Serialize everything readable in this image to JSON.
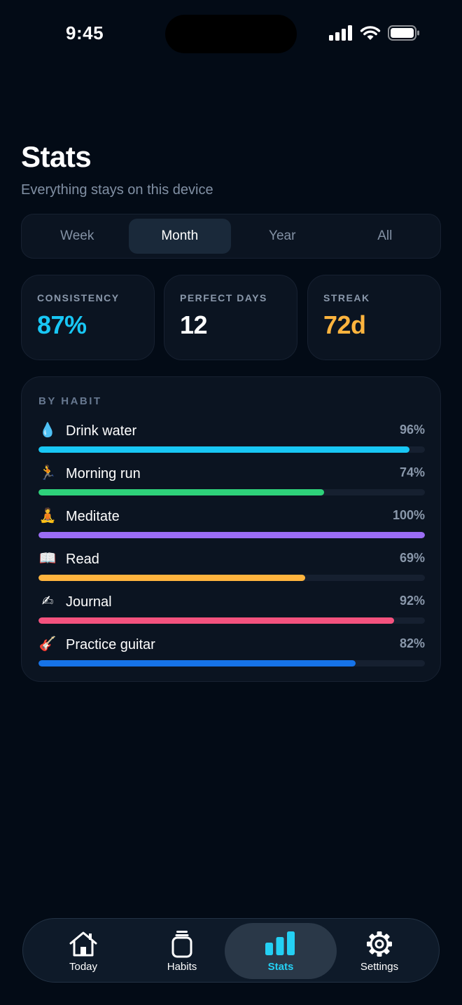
{
  "status_bar": {
    "time": "9:45"
  },
  "header": {
    "title": "Stats",
    "subtitle": "Everything stays on this device"
  },
  "period_tabs": [
    {
      "label": "Week",
      "active": false
    },
    {
      "label": "Month",
      "active": true
    },
    {
      "label": "Year",
      "active": false
    },
    {
      "label": "All",
      "active": false
    }
  ],
  "stat_cards": [
    {
      "label": "CONSISTENCY",
      "value": "87%",
      "color": "#18c7f5"
    },
    {
      "label": "PERFECT DAYS",
      "value": "12",
      "color": "#ffffff"
    },
    {
      "label": "STREAK",
      "value": "72d",
      "color": "#ffb43e"
    }
  ],
  "by_habit": {
    "label": "BY HABIT",
    "habits": [
      {
        "emoji": "💧",
        "name": "Drink water",
        "percent_label": "96%",
        "percent": 96,
        "color": "#18c7f5"
      },
      {
        "emoji": "🏃",
        "name": "Morning run",
        "percent_label": "74%",
        "percent": 74,
        "color": "#2ed17a"
      },
      {
        "emoji": "🧘",
        "name": "Meditate",
        "percent_label": "100%",
        "percent": 100,
        "color": "#9b6df5"
      },
      {
        "emoji": "📖",
        "name": "Read",
        "percent_label": "69%",
        "percent": 69,
        "color": "#ffb43e"
      },
      {
        "emoji": "✍",
        "name": "Journal",
        "percent_label": "92%",
        "percent": 92,
        "color": "#f4527e"
      },
      {
        "emoji": "🎸",
        "name": "Practice guitar",
        "percent_label": "82%",
        "percent": 82,
        "color": "#1673e8"
      }
    ]
  },
  "tab_bar": [
    {
      "label": "Today",
      "icon": "house-icon",
      "active": false
    },
    {
      "label": "Habits",
      "icon": "jar-icon",
      "active": false
    },
    {
      "label": "Stats",
      "icon": "bar-chart-icon",
      "active": true
    },
    {
      "label": "Settings",
      "icon": "gear-icon",
      "active": false
    }
  ]
}
